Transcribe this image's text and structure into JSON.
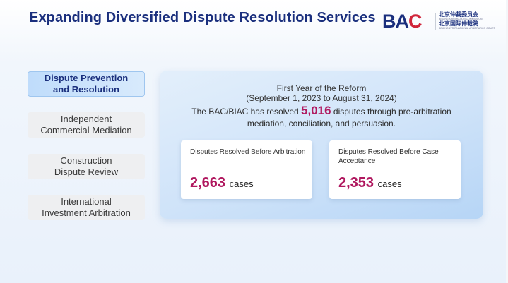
{
  "header": {
    "title": "Expanding Diversified Dispute Resolution Services",
    "logo": {
      "mark_b": "B",
      "mark_a": "A",
      "mark_c": "C",
      "line1": "北京仲裁委员会",
      "line2": "BEIJING ARBITRATION COMMISSION",
      "line3": "北京国际仲裁院",
      "line4": "BEIJING INTERNATIONAL ARBITRATION COURT"
    }
  },
  "nav": {
    "items": [
      {
        "label": "Dispute Prevention\nand Resolution",
        "active": true
      },
      {
        "label": "Independent\nCommercial Mediation",
        "active": false
      },
      {
        "label": "Construction\nDispute Review",
        "active": false
      },
      {
        "label": "International\nInvestment Arbitration",
        "active": false
      }
    ]
  },
  "panel": {
    "heading": "First Year of the Reform",
    "period": "(September 1, 2023 to August 31, 2024)",
    "summary_before": "The BAC/BIAC has resolved ",
    "summary_number": "5,016",
    "summary_after": " disputes through pre-arbitration mediation, conciliation, and persuasion.",
    "cards": [
      {
        "label": "Disputes Resolved Before Arbitration",
        "value": "2,663",
        "unit": "cases"
      },
      {
        "label": "Disputes Resolved Before Case Acceptance",
        "value": "2,353",
        "unit": "cases"
      }
    ]
  },
  "colors": {
    "title": "#1a2f7d",
    "accent": "#b0185f",
    "logo_red": "#d0253a"
  }
}
